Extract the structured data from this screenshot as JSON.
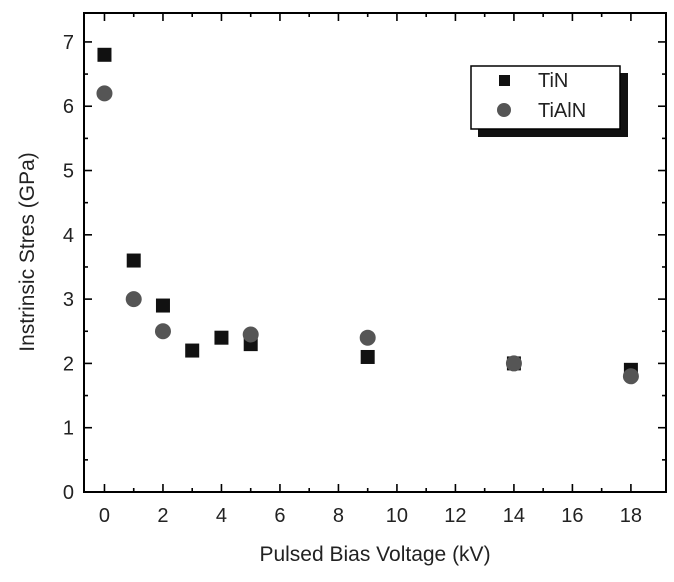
{
  "chart_data": {
    "type": "scatter",
    "title": "",
    "xlabel": "Pulsed Bias Voltage (kV)",
    "ylabel": "Instrinsic Stres (GPa)",
    "xlim": [
      -0.7,
      19.2
    ],
    "ylim": [
      0,
      7.45
    ],
    "x_ticks": [
      0,
      2,
      4,
      6,
      8,
      10,
      12,
      14,
      16,
      18
    ],
    "y_ticks": [
      0,
      1,
      2,
      3,
      4,
      5,
      6,
      7
    ],
    "grid": false,
    "legend": "top-right",
    "series": [
      {
        "name": "TiN",
        "marker": "square",
        "color": "#111111",
        "x": [
          0,
          1,
          2,
          3,
          4,
          5,
          9,
          14,
          18
        ],
        "y": [
          6.8,
          3.6,
          2.9,
          2.2,
          2.4,
          2.3,
          2.1,
          2.0,
          1.9
        ]
      },
      {
        "name": "TiAlN",
        "marker": "circle",
        "color": "#555555",
        "x": [
          0,
          1,
          2,
          5,
          9,
          14,
          18
        ],
        "y": [
          6.2,
          3.0,
          2.5,
          2.45,
          2.4,
          2.0,
          1.8
        ]
      }
    ]
  }
}
